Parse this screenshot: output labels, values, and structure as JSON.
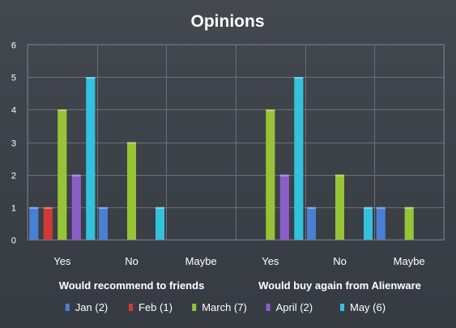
{
  "chart_data": {
    "type": "bar",
    "title": "Opinions",
    "groups": [
      {
        "label": "Would recommend to friends",
        "categories": [
          "Yes",
          "No",
          "Maybe"
        ]
      },
      {
        "label": "Would buy again from Alienware",
        "categories": [
          "Yes",
          "No",
          "Maybe"
        ]
      }
    ],
    "series": [
      {
        "name": "Jan (2)",
        "color": "#4a7fd4",
        "values": [
          1,
          1,
          0,
          0,
          1,
          1
        ]
      },
      {
        "name": "Feb (1)",
        "color": "#d23a3a",
        "values": [
          1,
          0,
          0,
          0,
          0,
          0
        ]
      },
      {
        "name": "March (7)",
        "color": "#97c337",
        "values": [
          4,
          3,
          0,
          4,
          2,
          1
        ]
      },
      {
        "name": "April (2)",
        "color": "#8a5ec9",
        "values": [
          2,
          0,
          0,
          2,
          0,
          0
        ]
      },
      {
        "name": "May (6)",
        "color": "#33c1de",
        "values": [
          5,
          1,
          0,
          5,
          1,
          0
        ]
      }
    ],
    "ylim": [
      0,
      6
    ],
    "yticks": [
      0,
      1,
      2,
      3,
      4,
      5,
      6
    ],
    "grid": true,
    "legend_position": "bottom"
  }
}
